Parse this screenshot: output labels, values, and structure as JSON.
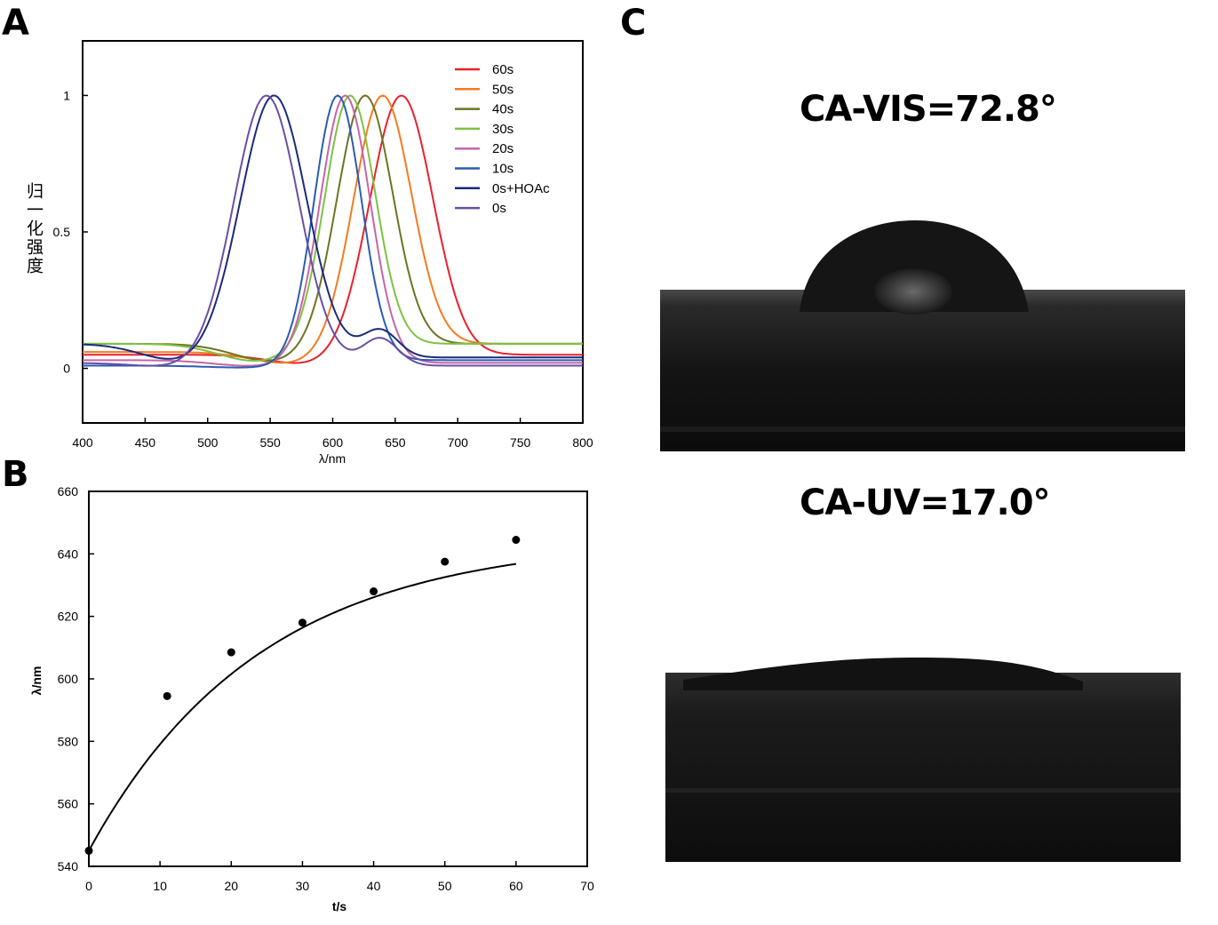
{
  "panels": {
    "a": "A",
    "b": "B",
    "c": "C"
  },
  "chart_data": [
    {
      "type": "line",
      "panel": "A",
      "xlabel": "λ/nm",
      "ylabel": "归一化强度",
      "xlim": [
        400,
        800
      ],
      "ylim": [
        -0.2,
        1.2
      ],
      "xticks": [
        400,
        450,
        500,
        550,
        600,
        650,
        700,
        750,
        800
      ],
      "yticks": [
        {
          "value": 0,
          "label": "0"
        },
        {
          "value": 0.5,
          "label": "0.5"
        },
        {
          "value": 1,
          "label": "1"
        }
      ],
      "legend_position": "top-right",
      "series": [
        {
          "name": "60s",
          "color": "#e8212b",
          "peak": 655,
          "width": 25,
          "base_left": 0.05,
          "base_right": 0.05,
          "values_at": {
            "400": 0.04,
            "450": 0.05,
            "500": 0.03,
            "600": 0.33,
            "655": 1.0,
            "700": 0.12,
            "750": 0.04,
            "800": 0.05
          }
        },
        {
          "name": "50s",
          "color": "#f47b20",
          "peak": 640,
          "width": 23,
          "base_left": 0.06,
          "base_right": 0.09,
          "values_at": {
            "400": 0.06,
            "500": 0.02,
            "640": 1.0,
            "700": 0.09,
            "800": 0.09
          }
        },
        {
          "name": "40s",
          "color": "#6e7421",
          "peak": 626,
          "width": 22,
          "base_left": 0.09,
          "base_right": 0.09,
          "values_at": {
            "400": 0.09,
            "500": 0.02,
            "626": 1.0,
            "700": 0.09,
            "800": 0.09
          }
        },
        {
          "name": "30s",
          "color": "#7dc242",
          "peak": 614,
          "width": 20,
          "base_left": 0.09,
          "base_right": 0.09,
          "values_at": {
            "400": 0.09,
            "500": 0.02,
            "614": 1.0,
            "690": 0.09,
            "800": 0.09
          }
        },
        {
          "name": "20s",
          "color": "#c465a8",
          "peak": 610,
          "width": 20,
          "base_left": 0.03,
          "base_right": 0.02,
          "values_at": {
            "400": 0.03,
            "500": 0.02,
            "610": 1.0,
            "680": 0.03,
            "800": 0.02
          }
        },
        {
          "name": "10s",
          "color": "#2a5db0",
          "peak": 604,
          "width": 19,
          "base_left": 0.01,
          "base_right": 0.03,
          "values_at": {
            "400": 0.01,
            "604": 1.0,
            "680": 0.0,
            "800": 0.03
          }
        },
        {
          "name": "0s+HOAc",
          "color": "#1b2a7a",
          "peak": 553,
          "width": 26,
          "base_left": 0.09,
          "base_right": 0.04,
          "values_at": {
            "400": 0.09,
            "470": 0.06,
            "553": 1.0,
            "600": 0.08,
            "640": 0.11,
            "700": 0.03,
            "800": 0.04
          }
        },
        {
          "name": "0s",
          "color": "#6a4fa3",
          "peak": 547,
          "width": 26,
          "base_left": 0.02,
          "base_right": 0.01,
          "values_at": {
            "400": 0.02,
            "547": 1.0,
            "620": 0.1,
            "680": 0.02,
            "800": 0.01
          }
        }
      ]
    },
    {
      "type": "scatter",
      "panel": "B",
      "xlabel": "t/s",
      "ylabel": "λ/nm",
      "xlim": [
        0,
        70
      ],
      "ylim": [
        540,
        660
      ],
      "xticks": [
        0,
        10,
        20,
        30,
        40,
        50,
        60,
        70
      ],
      "yticks": [
        540,
        560,
        580,
        600,
        620,
        640,
        660
      ],
      "points": [
        {
          "x": 0,
          "y": 545
        },
        {
          "x": 11,
          "y": 594.5
        },
        {
          "x": 20,
          "y": 608.5
        },
        {
          "x": 30,
          "y": 618
        },
        {
          "x": 40,
          "y": 628
        },
        {
          "x": 50,
          "y": 637.5
        },
        {
          "x": 60,
          "y": 644.5
        }
      ],
      "fit": {
        "kind": "exponential",
        "y0": 545,
        "amplitude": 100,
        "tau": 24,
        "x_range": [
          0,
          60
        ]
      }
    }
  ],
  "photos": {
    "vis_label": "CA-VIS=72.8°",
    "uv_label": "CA-UV=17.0°"
  }
}
